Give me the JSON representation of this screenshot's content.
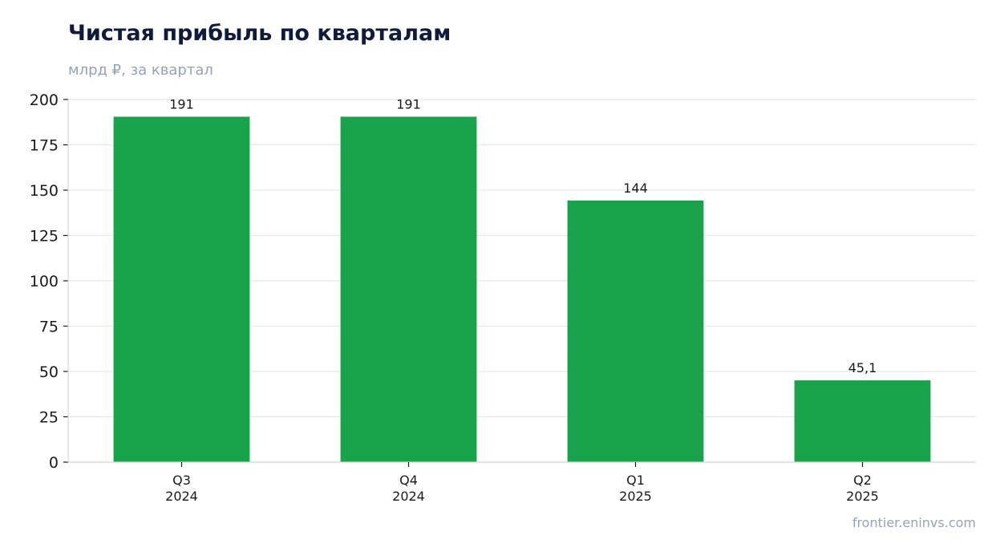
{
  "header": {
    "title": "Чистая прибыль по кварталам",
    "subtitle": "млрд ₽, за квартал"
  },
  "footer": {
    "source": "frontier.eninvs.com"
  },
  "colors": {
    "bar": "#18a24a",
    "grid": "#e5e7eb",
    "axis": "#d1d5db"
  },
  "chart_data": {
    "type": "bar",
    "categories": [
      [
        "Q3",
        "2024"
      ],
      [
        "Q4",
        "2024"
      ],
      [
        "Q1",
        "2025"
      ],
      [
        "Q2",
        "2025"
      ]
    ],
    "values": [
      190.5,
      190.5,
      144.3,
      45.1
    ],
    "data_labels": [
      "191",
      "191",
      "144",
      "45,1"
    ],
    "ylim": [
      0,
      200
    ],
    "yticks": [
      0,
      25,
      50,
      75,
      100,
      125,
      150,
      175,
      200
    ],
    "grid": true,
    "legend": "none"
  }
}
